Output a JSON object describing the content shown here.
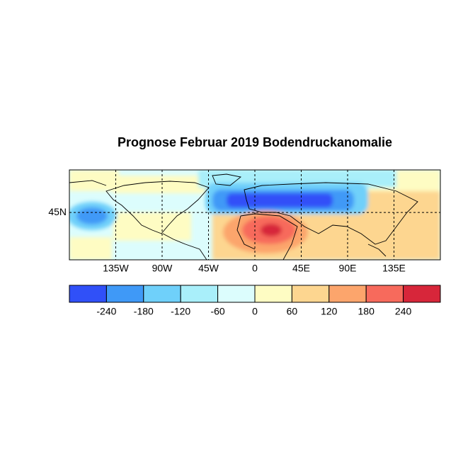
{
  "chart_data": {
    "type": "map",
    "title": "Prognose Februar 2019 Bodendruckanomalie",
    "xlim": [
      -180,
      180
    ],
    "xticks": [
      {
        "value": -135,
        "label": "135W"
      },
      {
        "value": -90,
        "label": "90W"
      },
      {
        "value": -45,
        "label": "45W"
      },
      0,
      {
        "value": 45,
        "label": "45E"
      },
      {
        "value": 90,
        "label": "90E"
      },
      {
        "value": 135,
        "label": "135E"
      }
    ],
    "ylim": [
      -5,
      90
    ],
    "yticks": [
      {
        "value": 45,
        "label": "45N"
      }
    ],
    "grid": true,
    "colorbar": {
      "clim": [
        -300,
        300
      ],
      "ticks": [
        -240,
        -180,
        -120,
        -60,
        0,
        60,
        120,
        180,
        240
      ],
      "colors": [
        "#3050f8",
        "#3f99f7",
        "#6fd0fa",
        "#a9effa",
        "#dcfdfd",
        "#fefcc3",
        "#fdd690",
        "#fca56c",
        "#f76a5c",
        "#d7263a"
      ]
    }
  }
}
